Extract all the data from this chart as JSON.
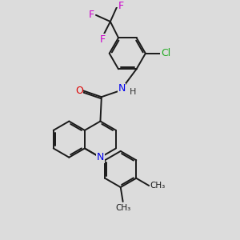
{
  "bg_color": "#dcdcdc",
  "bond_color": "#1a1a1a",
  "bond_width": 1.4,
  "atom_colors": {
    "N": "#0000ee",
    "O": "#dd0000",
    "Cl": "#22aa22",
    "F": "#cc00cc",
    "H": "#333333",
    "C": "#1a1a1a"
  },
  "font_size": 9
}
